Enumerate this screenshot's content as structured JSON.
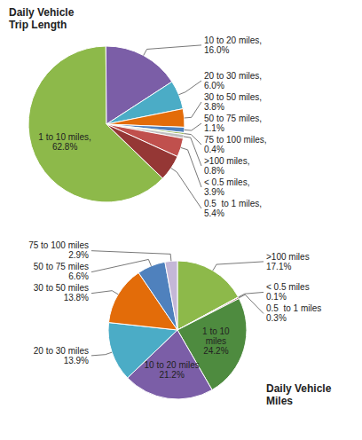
{
  "chart_data": [
    {
      "type": "pie",
      "title": "Daily Vehicle\nTrip Length",
      "categories": [
        "1 to 10 miles,",
        "10 to 20 miles,",
        "20 to 30 miles,",
        "30 to 50 miles,",
        "50 to 75 miles,",
        "75 to 100 miles,",
        ">100 miles,",
        "< 0.5 miles,",
        "0.5  to 1 miles,"
      ],
      "values": [
        62.8,
        16.0,
        6.0,
        3.8,
        1.1,
        0.4,
        0.8,
        3.9,
        5.4
      ],
      "value_labels": [
        "62.8%",
        "16.0%",
        "6.0%",
        "3.8%",
        "1.1%",
        "0.4%",
        "0.8%",
        "3.9%",
        "5.4%"
      ],
      "colors": [
        "#8db94a",
        "#7b5ea7",
        "#4bacc6",
        "#e36c09",
        "#4f81bd",
        "#9bbb59",
        "#bfbfbf",
        "#c0504d",
        "#953735"
      ],
      "data_labels": true
    },
    {
      "type": "pie",
      "title": "Daily Vehicle\nMiles",
      "categories": [
        ">100 miles",
        "< 0.5 miles",
        "0.5  to 1 miles",
        "1 to 10\nmiles",
        "10 to 20 miles",
        "20 to 30 miles",
        "30 to 50 miles",
        "50 to 75 miles",
        "75 to 100 miles"
      ],
      "values": [
        17.1,
        0.1,
        0.3,
        24.2,
        21.2,
        13.9,
        13.8,
        6.6,
        2.9
      ],
      "value_labels": [
        "17.1%",
        "0.1%",
        "0.3%",
        "24.2%",
        "21.2%",
        "13.9%",
        "13.8%",
        "6.6%",
        "2.9%"
      ],
      "colors": [
        "#8db94a",
        "#bfbfbf",
        "#963634",
        "#4e8b3f",
        "#7b5ea7",
        "#4bacc6",
        "#e36c09",
        "#4f81bd",
        "#c4b7d7"
      ],
      "data_labels": true
    }
  ]
}
